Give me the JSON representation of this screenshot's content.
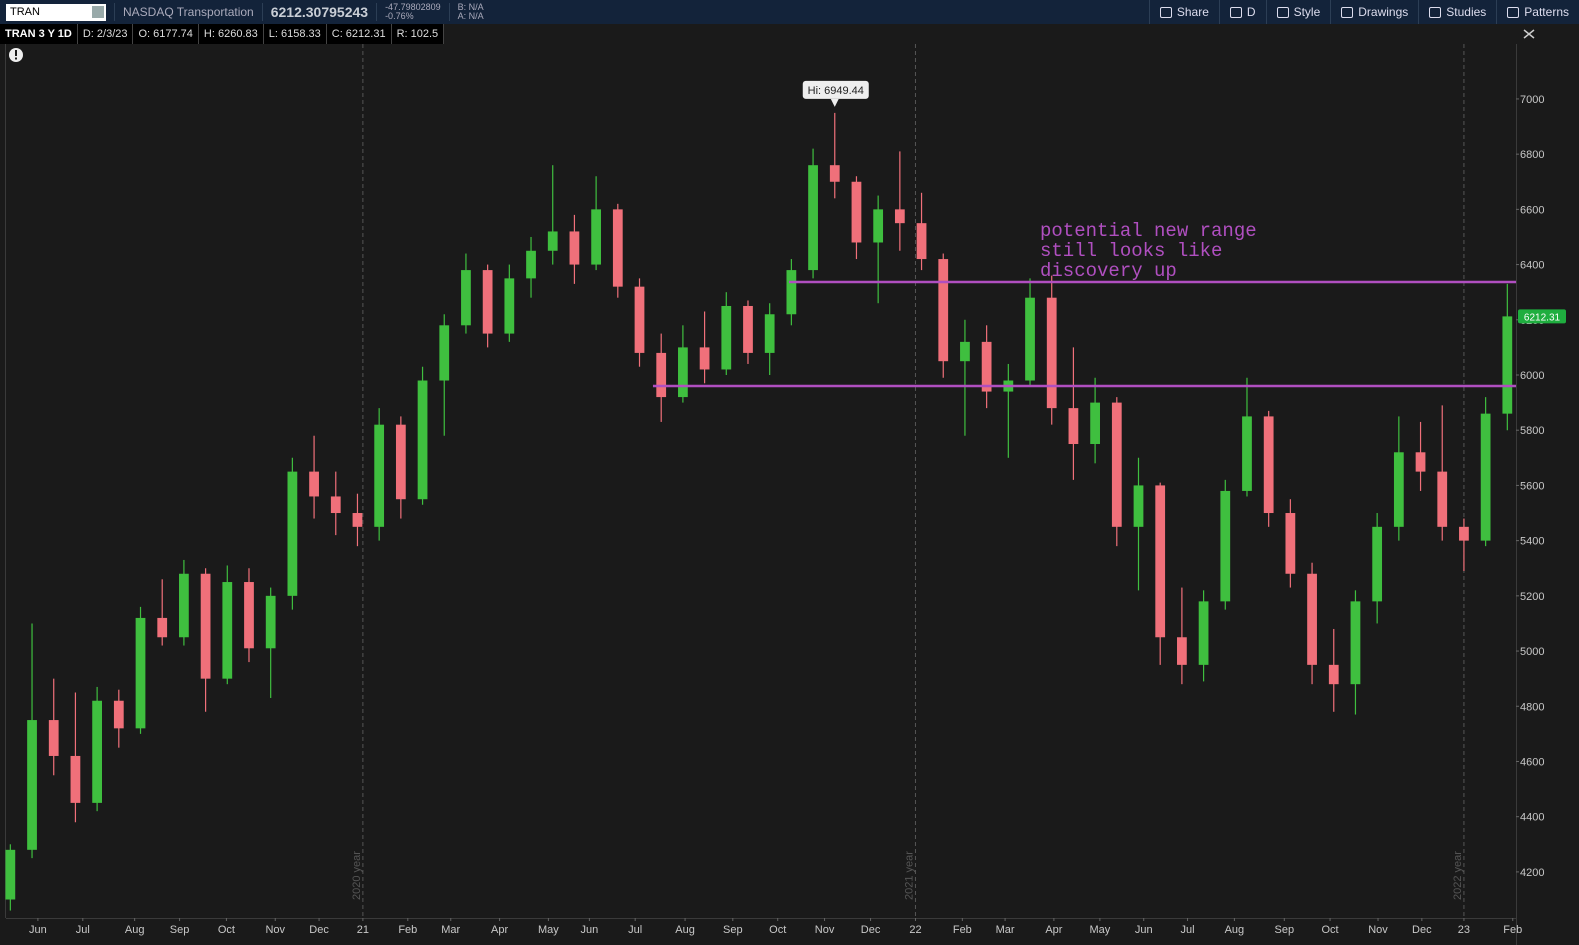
{
  "toolbar": {
    "symbol": "TRAN",
    "description": "NASDAQ Transportation",
    "last": "6212.30795243",
    "change": "-47.79802809",
    "change_pct": "-0.76%",
    "bid": "B: N/A",
    "ask": "A: N/A",
    "buttons": [
      "Share",
      "D",
      "Style",
      "Drawings",
      "Studies",
      "Patterns"
    ]
  },
  "info_bar": [
    "TRAN 3 Y 1D",
    "D: 2/3/23",
    "O: 6177.74",
    "H: 6260.83",
    "L: 6158.33",
    "C: 6212.31",
    "R: 102.5"
  ],
  "chart_data": {
    "type": "candlestick",
    "hi_label": "Hi: 6949.44",
    "up_color": "#3fbf3f",
    "down_color": "#f0707a",
    "candles": {
      "open": [
        4100,
        4280,
        4750,
        4620,
        4450,
        4820,
        4720,
        5120,
        5050,
        5280,
        4900,
        5250,
        5010,
        5200,
        5650,
        5560,
        5500,
        5450,
        5820,
        5550,
        5980,
        6180,
        6380,
        6150,
        6350,
        6450,
        6520,
        6400,
        6600,
        6320,
        6080,
        5920,
        6100,
        6020,
        6250,
        6080,
        6220,
        6380,
        6760,
        6700,
        6480,
        6600,
        6550,
        6420,
        6050,
        6120,
        5940,
        5980,
        6280,
        5880,
        5750,
        5900,
        5450,
        5600,
        5050,
        4950,
        5180,
        5580,
        5850,
        5500,
        5280,
        4950,
        4880,
        5180,
        5450,
        5720,
        5650,
        5450,
        5400,
        5860
      ],
      "high": [
        4300,
        5100,
        4900,
        4850,
        4870,
        4860,
        5160,
        5260,
        5330,
        5300,
        5310,
        5300,
        5230,
        5700,
        5780,
        5650,
        5570,
        5880,
        5850,
        6030,
        6220,
        6440,
        6400,
        6400,
        6500,
        6760,
        6580,
        6720,
        6620,
        6350,
        6150,
        6180,
        6230,
        6300,
        6270,
        6260,
        6420,
        6820,
        6949.44,
        6720,
        6650,
        6810,
        6660,
        6440,
        6200,
        6180,
        6040,
        6350,
        6360,
        6100,
        5990,
        5920,
        5700,
        5610,
        5230,
        5220,
        5620,
        5990,
        5870,
        5550,
        5320,
        5080,
        5220,
        5500,
        5850,
        5830,
        5890,
        5480,
        5920,
        6330
      ],
      "low": [
        4060,
        4250,
        4550,
        4380,
        4420,
        4650,
        4700,
        5020,
        5020,
        4780,
        4880,
        4960,
        4830,
        5150,
        5480,
        5420,
        5380,
        5400,
        5480,
        5530,
        5780,
        6150,
        6100,
        6120,
        6280,
        6400,
        6330,
        6380,
        6280,
        6030,
        5830,
        5900,
        5970,
        6000,
        6040,
        6000,
        6180,
        6350,
        6640,
        6420,
        6260,
        6450,
        6380,
        5990,
        5780,
        5880,
        5700,
        5960,
        5820,
        5620,
        5680,
        5380,
        5220,
        4950,
        4880,
        4890,
        5150,
        5560,
        5450,
        5230,
        4880,
        4780,
        4770,
        5100,
        5400,
        5580,
        5400,
        5290,
        5380,
        5800
      ],
      "close": [
        4280,
        4750,
        4620,
        4450,
        4820,
        4720,
        5120,
        5050,
        5280,
        4900,
        5250,
        5010,
        5200,
        5650,
        5560,
        5500,
        5450,
        5820,
        5550,
        5980,
        6180,
        6380,
        6150,
        6350,
        6450,
        6520,
        6400,
        6600,
        6320,
        6080,
        5920,
        6100,
        6020,
        6250,
        6080,
        6220,
        6380,
        6760,
        6700,
        6480,
        6600,
        6550,
        6420,
        6050,
        6120,
        5940,
        5980,
        6280,
        5880,
        5750,
        5900,
        5450,
        5600,
        5050,
        4950,
        5180,
        5580,
        5850,
        5500,
        5280,
        4950,
        4880,
        5180,
        5450,
        5720,
        5650,
        5450,
        5400,
        5860,
        6212.31
      ]
    },
    "xlim": [
      -0.2,
      69.4
    ],
    "xticks": [
      {
        "value": 1.27,
        "label": "Jun"
      },
      {
        "value": 3.34,
        "label": "Jul"
      },
      {
        "value": 5.73,
        "label": "Aug"
      },
      {
        "value": 7.8,
        "label": "Sep"
      },
      {
        "value": 9.96,
        "label": "Oct"
      },
      {
        "value": 12.21,
        "label": "Nov"
      },
      {
        "value": 14.23,
        "label": "Dec"
      },
      {
        "value": 16.25,
        "label": "21"
      },
      {
        "value": 18.32,
        "label": "Feb"
      },
      {
        "value": 20.3,
        "label": "Mar"
      },
      {
        "value": 22.55,
        "label": "Apr"
      },
      {
        "value": 24.8,
        "label": "May"
      },
      {
        "value": 26.69,
        "label": "Jun"
      },
      {
        "value": 28.8,
        "label": "Jul"
      },
      {
        "value": 31.1,
        "label": "Aug"
      },
      {
        "value": 33.3,
        "label": "Sep"
      },
      {
        "value": 35.37,
        "label": "Oct"
      },
      {
        "value": 37.53,
        "label": "Nov"
      },
      {
        "value": 39.65,
        "label": "Dec"
      },
      {
        "value": 41.72,
        "label": "22"
      },
      {
        "value": 43.88,
        "label": "Feb"
      },
      {
        "value": 45.85,
        "label": "Mar"
      },
      {
        "value": 48.1,
        "label": "Apr"
      },
      {
        "value": 50.22,
        "label": "May"
      },
      {
        "value": 52.24,
        "label": "Jun"
      },
      {
        "value": 54.26,
        "label": "Jul"
      },
      {
        "value": 56.42,
        "label": "Aug"
      },
      {
        "value": 58.72,
        "label": "Sep"
      },
      {
        "value": 60.83,
        "label": "Oct"
      },
      {
        "value": 63.04,
        "label": "Nov"
      },
      {
        "value": 65.06,
        "label": "Dec"
      },
      {
        "value": 67.0,
        "label": "23"
      },
      {
        "value": 69.25,
        "label": "Feb"
      }
    ],
    "ylim": [
      4033,
      7199
    ],
    "yticks": [
      4200,
      4400,
      4600,
      4800,
      5000,
      5200,
      5400,
      5600,
      5800,
      6000,
      6200,
      6400,
      6600,
      6800,
      7000
    ],
    "year_markers": [
      {
        "x": 16.25,
        "label": "2020 year"
      },
      {
        "x": 41.72,
        "label": "2021 year"
      },
      {
        "x": 67.0,
        "label": "2022 year"
      }
    ],
    "drawings": {
      "color": "#b04fc0",
      "lines": [
        {
          "value": 6337,
          "x_start": 35.89
        },
        {
          "value": 5960,
          "x_start": 29.62
        }
      ],
      "annotation": [
        "potential new range",
        "still looks like",
        "discovery up"
      ]
    }
  }
}
